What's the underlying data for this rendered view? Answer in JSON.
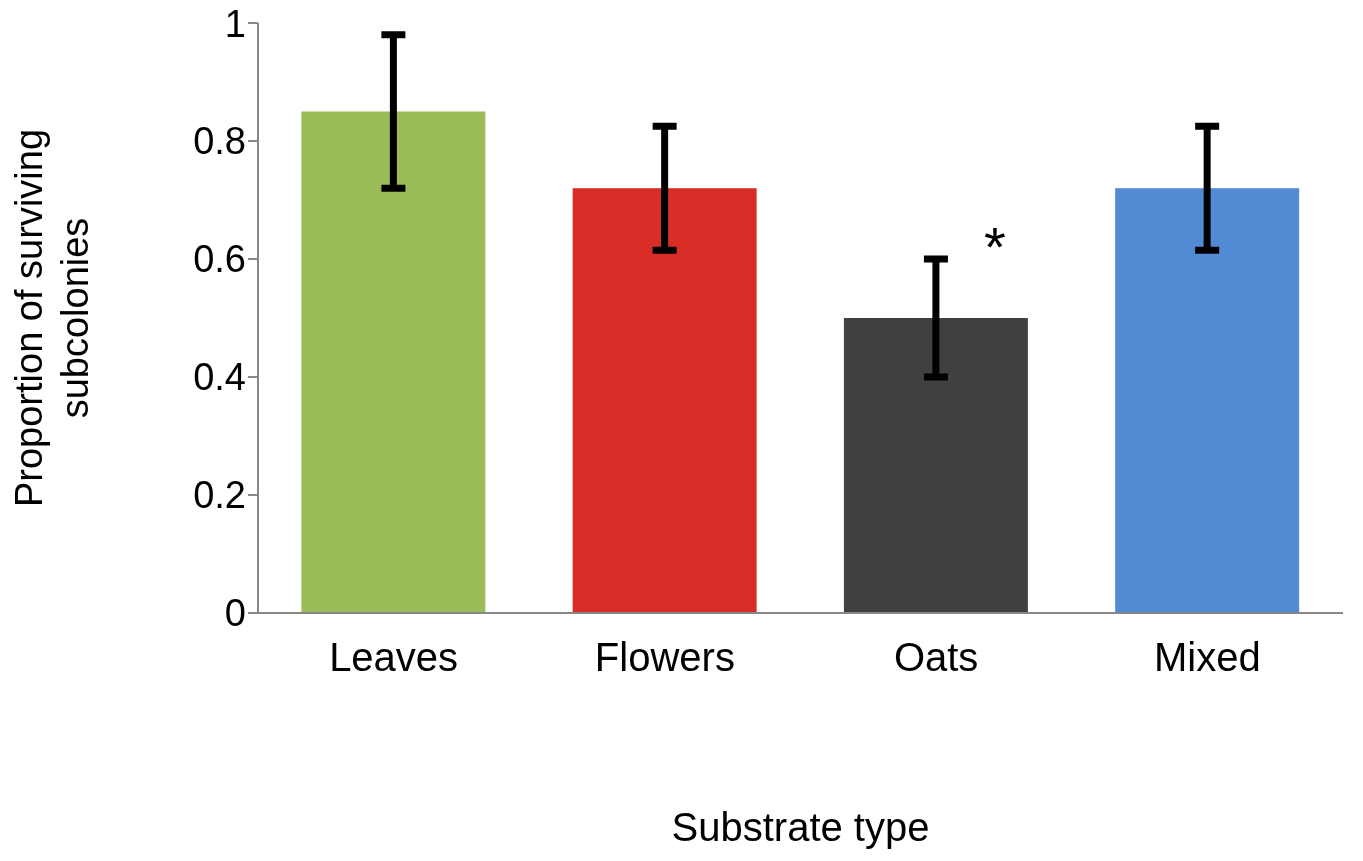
{
  "chart_data": {
    "type": "bar",
    "xlabel": "Substrate type",
    "ylabel": "Proportion of surviving subcolonies",
    "categories": [
      "Leaves",
      "Flowers",
      "Oats",
      "Mixed"
    ],
    "values": [
      0.85,
      0.72,
      0.5,
      0.72
    ],
    "colors": [
      "#9bbb59",
      "#d92e27",
      "#404040",
      "#528bd4"
    ],
    "errors": [
      0.13,
      0.105,
      0.1,
      0.105
    ],
    "ylim": [
      0,
      1
    ],
    "yticks": [
      0,
      0.2,
      0.4,
      0.6,
      0.8,
      1
    ],
    "grid": false,
    "legend": false,
    "annotations": [
      "*"
    ]
  }
}
